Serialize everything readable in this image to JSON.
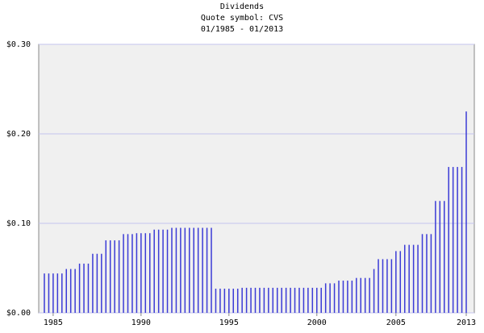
{
  "chart_data": {
    "type": "bar",
    "title": "Dividends",
    "subtitle": "Quote symbol: CVS",
    "date_range": "01/1985 - 01/2013",
    "categories": [
      null,
      null,
      "1985",
      null,
      null,
      null,
      null,
      null,
      null,
      null,
      null,
      null,
      null,
      null,
      null,
      null,
      null,
      null,
      null,
      null,
      null,
      null,
      "1990",
      null,
      null,
      null,
      null,
      null,
      null,
      null,
      null,
      null,
      null,
      null,
      null,
      null,
      null,
      null,
      null,
      null,
      null,
      null,
      "1995",
      null,
      null,
      null,
      null,
      null,
      null,
      null,
      null,
      null,
      null,
      null,
      null,
      null,
      null,
      null,
      null,
      null,
      null,
      null,
      "2000",
      null,
      null,
      null,
      null,
      null,
      null,
      null,
      null,
      null,
      null,
      null,
      null,
      null,
      null,
      null,
      null,
      null,
      "2005",
      null,
      null,
      null,
      null,
      null,
      null,
      null,
      null,
      null,
      null,
      null,
      null,
      null,
      null,
      null,
      "2013"
    ],
    "values": [
      0.044,
      0.044,
      0.044,
      0.044,
      0.044,
      0.049,
      0.049,
      0.049,
      0.055,
      0.055,
      0.055,
      0.066,
      0.066,
      0.066,
      0.081,
      0.081,
      0.081,
      0.081,
      0.088,
      0.088,
      0.088,
      0.089,
      0.089,
      0.089,
      0.089,
      0.093,
      0.093,
      0.093,
      0.093,
      0.095,
      0.095,
      0.095,
      0.095,
      0.095,
      0.095,
      0.095,
      0.095,
      0.095,
      0.095,
      0.027,
      0.027,
      0.027,
      0.027,
      0.027,
      0.027,
      0.028,
      0.028,
      0.028,
      0.028,
      0.028,
      0.028,
      0.028,
      0.028,
      0.028,
      0.028,
      0.028,
      0.028,
      0.028,
      0.028,
      0.028,
      0.028,
      0.028,
      0.028,
      0.028,
      0.033,
      0.033,
      0.033,
      0.036,
      0.036,
      0.036,
      0.036,
      0.039,
      0.039,
      0.039,
      0.039,
      0.049,
      0.06,
      0.06,
      0.06,
      0.06,
      0.069,
      0.069,
      0.076,
      0.076,
      0.076,
      0.076,
      0.088,
      0.088,
      0.088,
      0.125,
      0.125,
      0.125,
      0.163,
      0.163,
      0.163,
      0.163,
      0.225
    ],
    "color": "#3b3bd6",
    "ylim": [
      0,
      0.3
    ],
    "yticks": [
      {
        "value": 0,
        "label": "$0.00"
      },
      {
        "value": 0.1,
        "label": "$0.10"
      },
      {
        "value": 0.2,
        "label": "$0.20"
      },
      {
        "value": 0.3,
        "label": "$0.30"
      }
    ],
    "grid": true
  }
}
